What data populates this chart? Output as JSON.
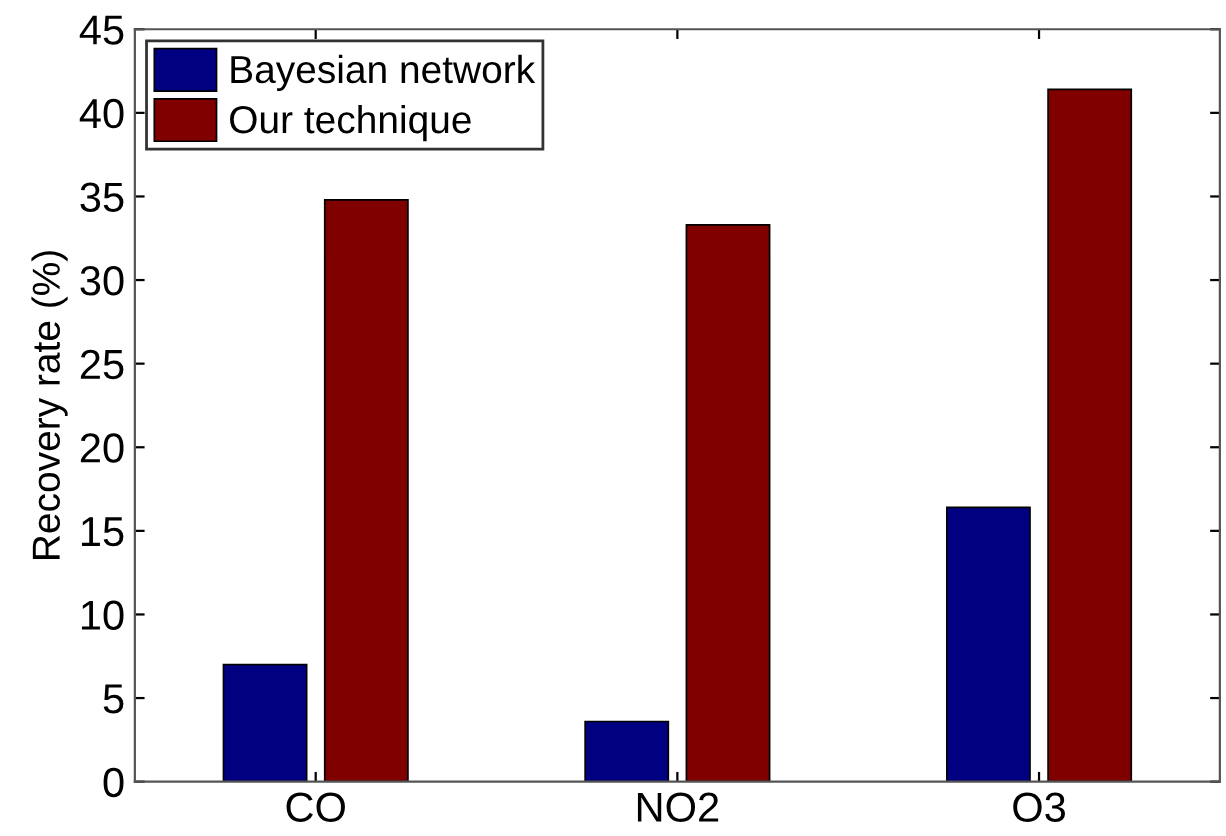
{
  "chart_data": {
    "type": "bar",
    "ylabel": "Recovery rate (%)",
    "categories": [
      "CO",
      "NO2",
      "O3"
    ],
    "series": [
      {
        "name": "Bayesian network",
        "color": "#000080",
        "values": [
          7.0,
          3.6,
          16.4
        ]
      },
      {
        "name": "Our technique",
        "color": "#800000",
        "values": [
          34.8,
          33.3,
          41.4
        ]
      }
    ],
    "ylim": [
      0,
      45
    ],
    "yticks": [
      0,
      5,
      10,
      15,
      20,
      25,
      30,
      35,
      40,
      45
    ],
    "grid": false,
    "legend": "top left"
  }
}
